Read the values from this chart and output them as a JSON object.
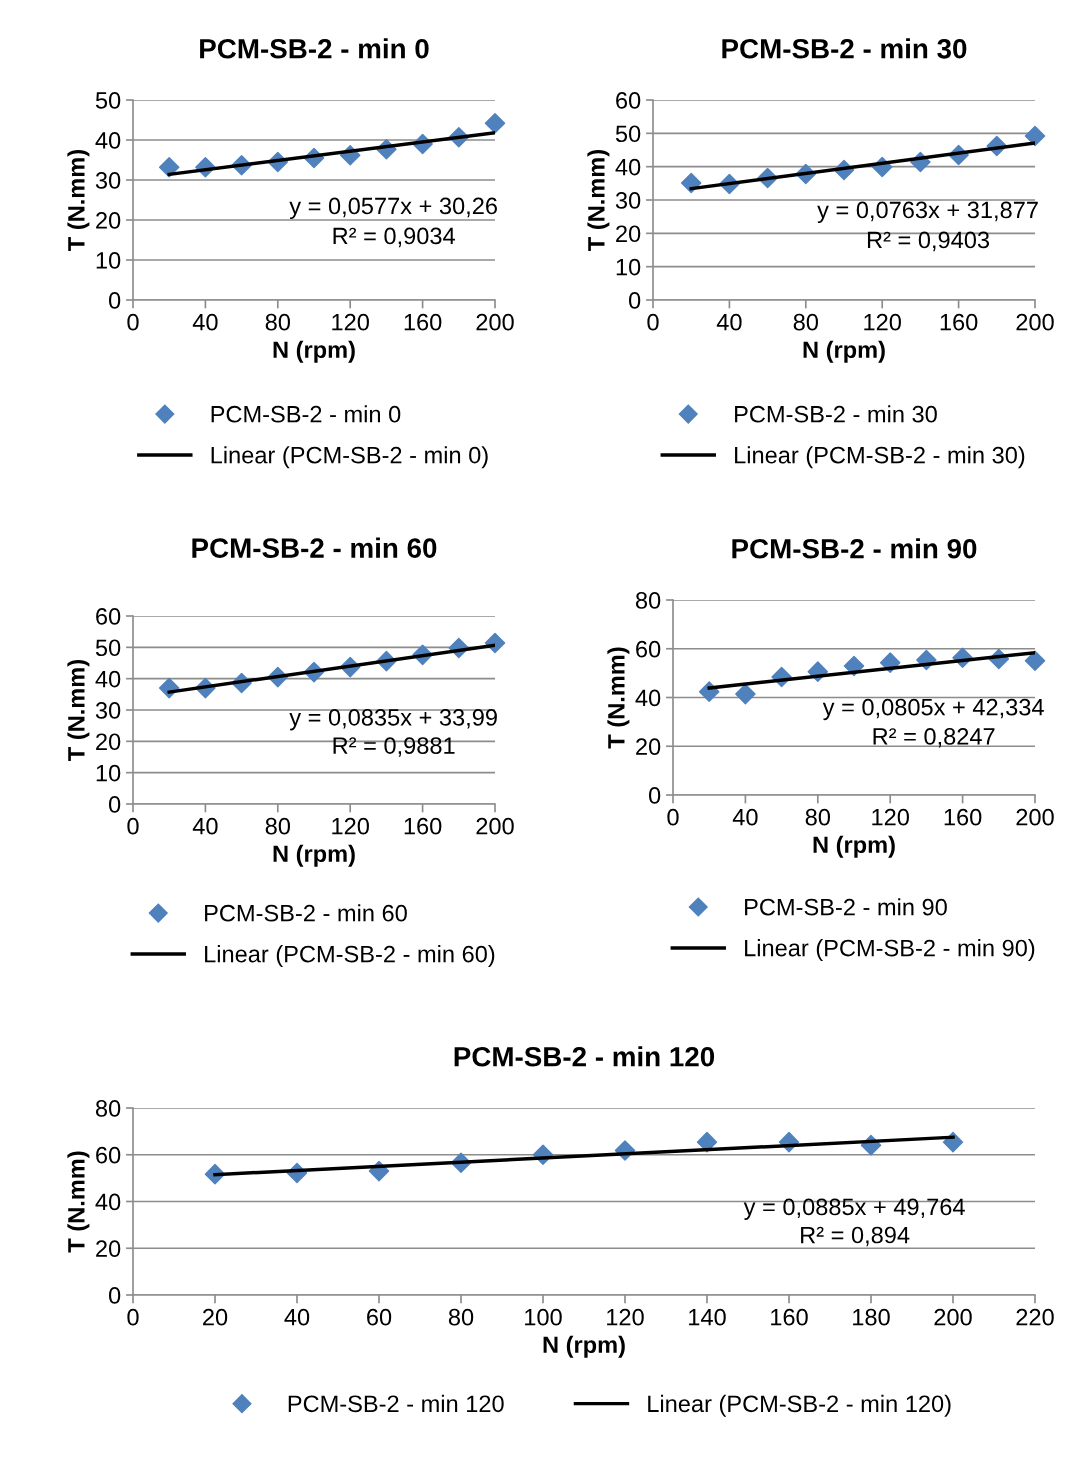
{
  "chart_data": [
    {
      "type": "scatter",
      "title": "PCM-SB-2 - min 0",
      "xlabel": "N (rpm)",
      "ylabel": "T (N.mm)",
      "xlim": [
        0,
        200
      ],
      "xticks": [
        0,
        40,
        80,
        120,
        160,
        200
      ],
      "ylim": [
        0,
        50
      ],
      "yticks": [
        0,
        10,
        20,
        30,
        40,
        50
      ],
      "grid": "y",
      "legend": "bottom",
      "annotations": [
        "y = 0,0577x + 30,26",
        "R² = 0,9034"
      ],
      "series": [
        {
          "name": "PCM-SB-2 - min 0",
          "marker": "diamond",
          "color": "#4f81bd",
          "x": [
            20,
            40,
            60,
            80,
            100,
            120,
            140,
            160,
            180,
            200
          ],
          "values": [
            33.2,
            33.2,
            33.7,
            34.5,
            35.5,
            36.2,
            37.7,
            39.0,
            40.7,
            44.2
          ]
        },
        {
          "name": "Linear (PCM-SB-2 - min 0)",
          "type": "line",
          "marker": "none",
          "line_style": "solid",
          "color": "#000000",
          "x": [
            20,
            200
          ],
          "values": [
            31.4,
            41.8
          ]
        }
      ]
    },
    {
      "type": "scatter",
      "title": "PCM-SB-2 - min 30",
      "xlabel": "N (rpm)",
      "ylabel": "T (N.mm)",
      "xlim": [
        0,
        200
      ],
      "xticks": [
        0,
        40,
        80,
        120,
        160,
        200
      ],
      "ylim": [
        0,
        60
      ],
      "yticks": [
        0,
        10,
        20,
        30,
        40,
        50,
        60
      ],
      "grid": "y",
      "legend": "bottom",
      "annotations": [
        "y = 0,0763x + 31,877",
        "R² = 0,9403"
      ],
      "series": [
        {
          "name": "PCM-SB-2 - min 30",
          "marker": "diamond",
          "color": "#4f81bd",
          "x": [
            20,
            40,
            60,
            80,
            100,
            120,
            140,
            160,
            180,
            200
          ],
          "values": [
            35.1,
            34.8,
            36.6,
            37.8,
            39.0,
            39.9,
            41.4,
            43.5,
            46.2,
            49.2
          ]
        },
        {
          "name": "Linear (PCM-SB-2 - min 30)",
          "type": "line",
          "marker": "none",
          "line_style": "solid",
          "color": "#000000",
          "x": [
            20,
            200
          ],
          "values": [
            33.4,
            47.1
          ]
        }
      ]
    },
    {
      "type": "scatter",
      "title": "PCM-SB-2 - min 60",
      "xlabel": "N (rpm)",
      "ylabel": "T (N.mm)",
      "xlim": [
        0,
        200
      ],
      "xticks": [
        0,
        40,
        80,
        120,
        160,
        200
      ],
      "ylim": [
        0,
        60
      ],
      "yticks": [
        0,
        10,
        20,
        30,
        40,
        50,
        60
      ],
      "grid": "y",
      "legend": "bottom",
      "annotations": [
        "y = 0,0835x + 33,99",
        "R² = 0,9881"
      ],
      "series": [
        {
          "name": "PCM-SB-2 - min 60",
          "marker": "diamond",
          "color": "#4f81bd",
          "x": [
            20,
            40,
            60,
            80,
            100,
            120,
            140,
            160,
            180,
            200
          ],
          "values": [
            37.0,
            37.0,
            38.6,
            40.5,
            42.1,
            43.7,
            45.6,
            47.6,
            49.8,
            51.4
          ]
        },
        {
          "name": "Linear (PCM-SB-2 - min 60)",
          "type": "line",
          "marker": "none",
          "line_style": "solid",
          "color": "#000000",
          "x": [
            20,
            200
          ],
          "values": [
            35.7,
            50.7
          ]
        }
      ]
    },
    {
      "type": "scatter",
      "title": "PCM-SB-2 - min 90",
      "xlabel": "N (rpm)",
      "ylabel": "T (N.mm)",
      "xlim": [
        0,
        200
      ],
      "xticks": [
        0,
        40,
        80,
        120,
        160,
        200
      ],
      "ylim": [
        0,
        80
      ],
      "yticks": [
        0,
        20,
        40,
        60,
        80
      ],
      "grid": "y",
      "legend": "bottom",
      "annotations": [
        "y = 0,0805x + 42,334",
        "R² = 0,8247"
      ],
      "series": [
        {
          "name": "PCM-SB-2 - min 90",
          "marker": "diamond",
          "color": "#4f81bd",
          "x": [
            20,
            40,
            60,
            80,
            100,
            120,
            140,
            160,
            180,
            200
          ],
          "values": [
            42.4,
            41.4,
            48.4,
            50.6,
            52.9,
            54.3,
            55.4,
            56.3,
            55.8,
            55.1
          ]
        },
        {
          "name": "Linear (PCM-SB-2 - min 90)",
          "type": "line",
          "marker": "none",
          "line_style": "solid",
          "color": "#000000",
          "x": [
            20,
            200
          ],
          "values": [
            43.9,
            58.4
          ]
        }
      ]
    },
    {
      "type": "scatter",
      "title": "PCM-SB-2 - min 120",
      "xlabel": "N (rpm)",
      "ylabel": "T (N.mm)",
      "xlim": [
        0,
        220
      ],
      "xticks": [
        0,
        20,
        40,
        60,
        80,
        100,
        120,
        140,
        160,
        180,
        200,
        220
      ],
      "ylim": [
        0,
        80
      ],
      "yticks": [
        0,
        20,
        40,
        60,
        80
      ],
      "grid": "y",
      "legend": "bottom",
      "annotations": [
        "y = 0,0885x + 49,764",
        "R² = 0,894"
      ],
      "series": [
        {
          "name": "PCM-SB-2 - min 120",
          "marker": "diamond",
          "color": "#4f81bd",
          "x": [
            20,
            40,
            60,
            80,
            100,
            120,
            140,
            160,
            180,
            200
          ],
          "values": [
            51.7,
            52.2,
            53.0,
            56.6,
            60.0,
            61.8,
            65.4,
            65.4,
            64.1,
            65.4
          ]
        },
        {
          "name": "Linear (PCM-SB-2 - min 120)",
          "type": "line",
          "marker": "none",
          "line_style": "solid",
          "color": "#000000",
          "x": [
            20,
            200
          ],
          "values": [
            51.5,
            67.5
          ]
        }
      ]
    }
  ]
}
